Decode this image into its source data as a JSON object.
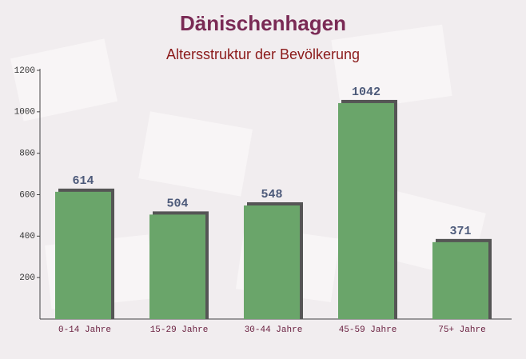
{
  "chart_data": {
    "type": "bar",
    "title": "Dänischenhagen",
    "subtitle": "Altersstruktur der Bevölkerung",
    "categories": [
      "0-14 Jahre",
      "15-29 Jahre",
      "30-44 Jahre",
      "45-59 Jahre",
      "75+ Jahre"
    ],
    "values": [
      614,
      504,
      548,
      1042,
      371
    ],
    "color": "#6aa56a",
    "ylim": [
      0,
      1200
    ],
    "yticks": [
      200,
      400,
      600,
      800,
      1000,
      1200
    ]
  }
}
